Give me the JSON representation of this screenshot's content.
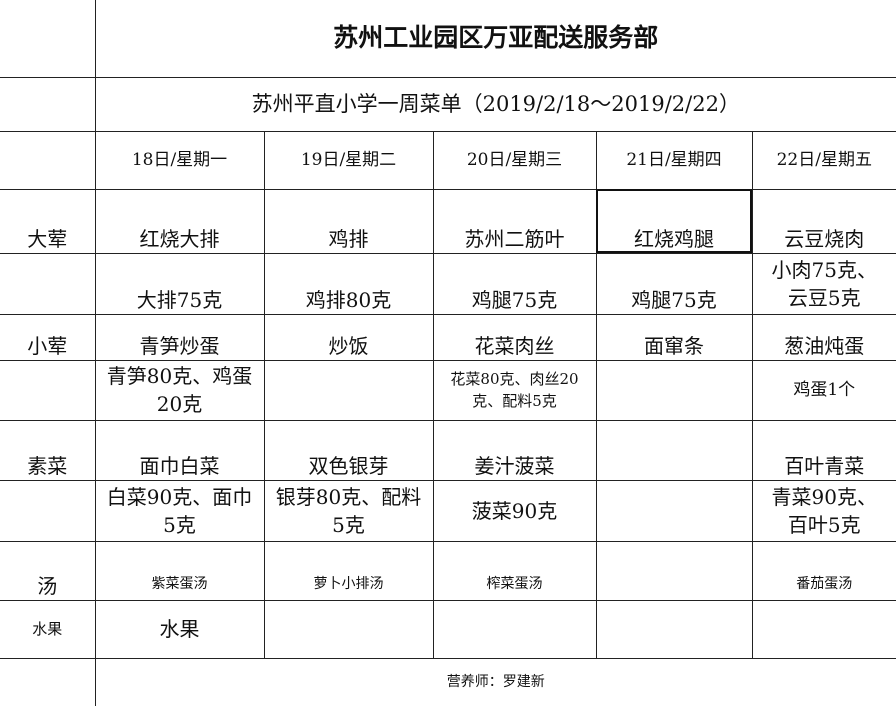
{
  "title": "苏州工业园区万亚配送服务部",
  "subtitle": "苏州平直小学一周菜单（2019/2/18～2019/2/22）",
  "days": [
    "18日/星期一",
    "19日/星期二",
    "20日/星期三",
    "21日/星期四",
    "22日/星期五"
  ],
  "categories": {
    "big_meat": "大荤",
    "small_meat": "小荤",
    "vegetable": "素菜",
    "soup": "汤",
    "fruit": "水果"
  },
  "big_meat": {
    "dishes": [
      "红烧大排",
      "鸡排",
      "苏州二筋叶",
      "红烧鸡腿",
      "云豆烧肉"
    ],
    "details": [
      "大排75克",
      "鸡排80克",
      "鸡腿75克",
      "鸡腿75克",
      "小肉75克、云豆5克"
    ]
  },
  "small_meat": {
    "dishes": [
      "青笋炒蛋",
      "炒饭",
      "花菜肉丝",
      "面窜条",
      "葱油炖蛋"
    ],
    "details": [
      "青笋80克、鸡蛋20克",
      "",
      "花菜80克、肉丝20克、配料5克",
      "",
      "鸡蛋1个"
    ]
  },
  "vegetable": {
    "dishes": [
      "面巾白菜",
      "双色银芽",
      "姜汁菠菜",
      "",
      "百叶青菜"
    ],
    "details": [
      "白菜90克、面巾5克",
      "银芽80克、配料5克",
      "菠菜90克",
      "",
      "青菜90克、百叶5克"
    ]
  },
  "soup": [
    "紫菜蛋汤",
    "萝卜小排汤",
    "榨菜蛋汤",
    "",
    "番茄蛋汤"
  ],
  "fruit": [
    "水果",
    "",
    "",
    "",
    ""
  ],
  "footer": "营养师：罗建新"
}
